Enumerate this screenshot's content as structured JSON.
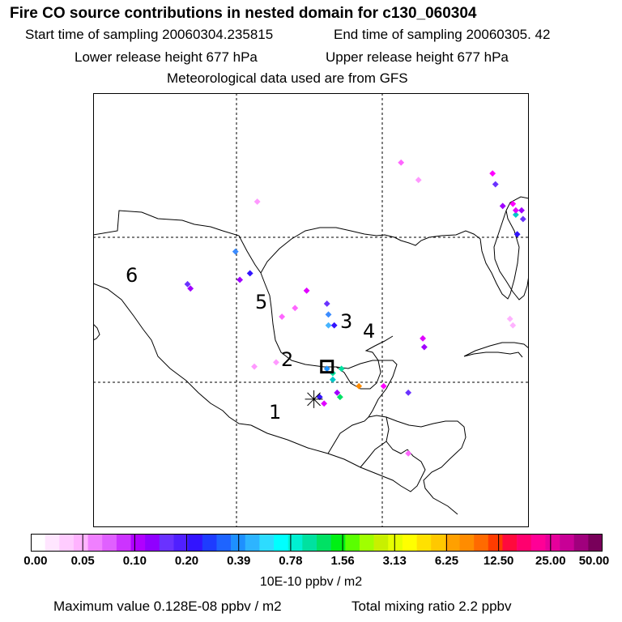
{
  "header": {
    "title": "Fire CO source contributions in nested domain for c130_060304",
    "start_label": "Start time of sampling 20060304.235815",
    "end_label": "End time of sampling 20060305.    42",
    "lower_label": "Lower release height  677 hPa",
    "upper_label": "Upper release height  677 hPa",
    "met_label": "Meteorological data used are from GFS"
  },
  "map": {
    "region_labels": [
      "1",
      "2",
      "3",
      "4",
      "5",
      "6"
    ],
    "colors": {
      "land_outline": "#000000",
      "grid": "#000000",
      "marker": "#000000"
    },
    "hotspots": [
      {
        "lon": -100.1,
        "lat": 22.7,
        "color": "#3c8cff"
      },
      {
        "lon": -103.4,
        "lat": 21.2,
        "color": "#6a32ff"
      },
      {
        "lon": -103.2,
        "lat": 21.0,
        "color": "#a000ff"
      },
      {
        "lon": -99.8,
        "lat": 21.4,
        "color": "#a000ff"
      },
      {
        "lon": -99.1,
        "lat": 21.7,
        "color": "#3214ff"
      },
      {
        "lon": -95.2,
        "lat": 20.9,
        "color": "#e000ff"
      },
      {
        "lon": -93.8,
        "lat": 20.3,
        "color": "#6a32ff"
      },
      {
        "lon": -93.7,
        "lat": 19.8,
        "color": "#3c8cff"
      },
      {
        "lon": -93.7,
        "lat": 19.3,
        "color": "#46b4ff"
      },
      {
        "lon": -93.3,
        "lat": 19.3,
        "color": "#3214ff"
      },
      {
        "lon": -93.8,
        "lat": 17.3,
        "color": "#1e90ff"
      },
      {
        "lon": -93.4,
        "lat": 17.1,
        "color": "#00e1a0"
      },
      {
        "lon": -92.8,
        "lat": 17.3,
        "color": "#00e1a0"
      },
      {
        "lon": -93.4,
        "lat": 16.8,
        "color": "#00c8c8"
      },
      {
        "lon": -91.6,
        "lat": 16.5,
        "color": "#ff8c00"
      },
      {
        "lon": -93.1,
        "lat": 16.2,
        "color": "#a000ff"
      },
      {
        "lon": -92.9,
        "lat": 16.0,
        "color": "#00e164"
      },
      {
        "lon": -94.3,
        "lat": 16.0,
        "color": "#3214ff"
      },
      {
        "lon": -94.0,
        "lat": 15.7,
        "color": "#e000ff"
      },
      {
        "lon": -89.9,
        "lat": 16.5,
        "color": "#ff00ff"
      },
      {
        "lon": -88.2,
        "lat": 16.2,
        "color": "#6a32ff"
      },
      {
        "lon": -87.2,
        "lat": 18.7,
        "color": "#e000ff"
      },
      {
        "lon": -87.1,
        "lat": 18.3,
        "color": "#a000ff"
      },
      {
        "lon": -82.2,
        "lat": 25.8,
        "color": "#6a32ff"
      },
      {
        "lon": -80.8,
        "lat": 24.4,
        "color": "#00c8c8"
      },
      {
        "lon": -80.3,
        "lat": 24.2,
        "color": "#6a32ff"
      },
      {
        "lon": -80.7,
        "lat": 23.5,
        "color": "#3214ff"
      },
      {
        "lon": -81.7,
        "lat": 24.8,
        "color": "#a000ff"
      },
      {
        "lon": -80.4,
        "lat": 24.6,
        "color": "#a000ff"
      },
      {
        "lon": -80.8,
        "lat": 24.6,
        "color": "#e000ff"
      },
      {
        "lon": -82.4,
        "lat": 26.3,
        "color": "#ff00ff"
      },
      {
        "lon": -81.0,
        "lat": 24.9,
        "color": "#ff00ff"
      },
      {
        "lon": -88.7,
        "lat": 26.8,
        "color": "#ff66ff"
      },
      {
        "lon": -87.5,
        "lat": 26.0,
        "color": "#ff99ff"
      },
      {
        "lon": -96.0,
        "lat": 20.1,
        "color": "#ff66ff"
      },
      {
        "lon": -96.9,
        "lat": 19.7,
        "color": "#ff66ff"
      },
      {
        "lon": -98.6,
        "lat": 25.0,
        "color": "#ff99ff"
      },
      {
        "lon": -98.8,
        "lat": 17.4,
        "color": "#ff99ff"
      },
      {
        "lon": -97.3,
        "lat": 17.6,
        "color": "#ff99ff"
      },
      {
        "lon": -81.2,
        "lat": 19.6,
        "color": "#ffb3ff"
      },
      {
        "lon": -81.0,
        "lat": 19.3,
        "color": "#ffb3ff"
      },
      {
        "lon": -88.2,
        "lat": 13.4,
        "color": "#ff66ff"
      }
    ],
    "receptor": {
      "lon": -93.8,
      "lat": 17.4
    },
    "source_star": {
      "lon": -94.7,
      "lat": 15.9
    }
  },
  "colorbar": {
    "colors": [
      "#ffffff",
      "#ffe6ff",
      "#ffccff",
      "#ffb3ff",
      "#f080ff",
      "#e060ff",
      "#cc33ff",
      "#b000ff",
      "#9000ff",
      "#6a32ff",
      "#5020ff",
      "#3214ff",
      "#1e3cff",
      "#1e64ff",
      "#1e90ff",
      "#2db4ff",
      "#2ddcff",
      "#00ffff",
      "#00f0d2",
      "#00e1a0",
      "#00e164",
      "#00f014",
      "#5aff00",
      "#a0ff00",
      "#c8f000",
      "#e6ff00",
      "#ffff00",
      "#ffe100",
      "#ffc800",
      "#ffa000",
      "#ff8c00",
      "#ff6a00",
      "#ff3c00",
      "#ff0a3c",
      "#ff006e",
      "#ff0096",
      "#e6009b",
      "#c80096",
      "#a0007d",
      "#78005a"
    ],
    "tick_labels": [
      "0.00",
      "0.05",
      "0.10",
      "0.20",
      "0.39",
      "0.78",
      "1.56",
      "3.13",
      "6.25",
      "12.50",
      "25.00",
      "50.00"
    ],
    "units": "10E-10 ppbv / m2"
  },
  "footer": {
    "max_text": "Maximum value  0.128E-08 ppbv / m2",
    "total_text": "Total mixing ratio        2.2 ppbv"
  }
}
